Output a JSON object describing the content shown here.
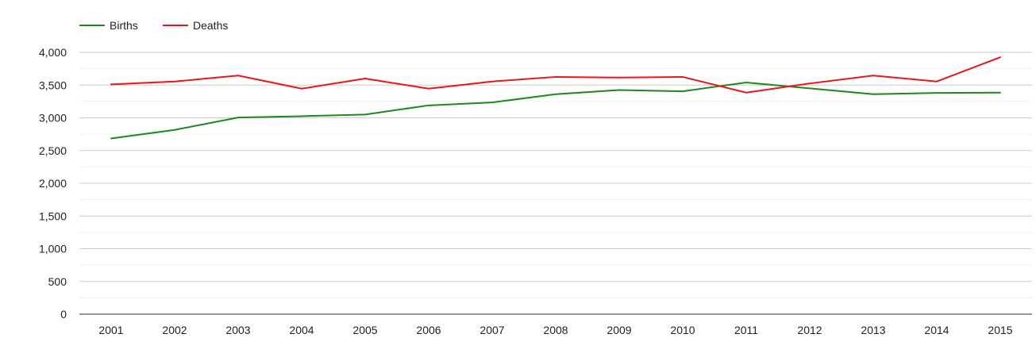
{
  "chart_data": {
    "type": "line",
    "title": "",
    "xlabel": "",
    "ylabel": "",
    "x": [
      "2001",
      "2002",
      "2003",
      "2004",
      "2005",
      "2006",
      "2007",
      "2008",
      "2009",
      "2010",
      "2011",
      "2012",
      "2013",
      "2014",
      "2015"
    ],
    "ylim": [
      0,
      4000
    ],
    "y_ticks": [
      0,
      500,
      1000,
      1500,
      2000,
      2500,
      3000,
      3500,
      4000
    ],
    "y_tick_labels": [
      "0",
      "500",
      "1,000",
      "1,500",
      "2,000",
      "2,500",
      "3,000",
      "3,500",
      "4,000"
    ],
    "grid": true,
    "legend_position": "top-left",
    "series": [
      {
        "name": "Births",
        "color": "#1a8a1a",
        "values": [
          2685,
          2815,
          3005,
          3025,
          3050,
          3190,
          3235,
          3360,
          3425,
          3405,
          3540,
          3450,
          3360,
          3380,
          3385
        ]
      },
      {
        "name": "Deaths",
        "color": "#e8161b",
        "values": [
          3510,
          3555,
          3645,
          3445,
          3600,
          3445,
          3555,
          3625,
          3615,
          3625,
          3385,
          3525,
          3645,
          3555,
          3925
        ]
      }
    ]
  }
}
